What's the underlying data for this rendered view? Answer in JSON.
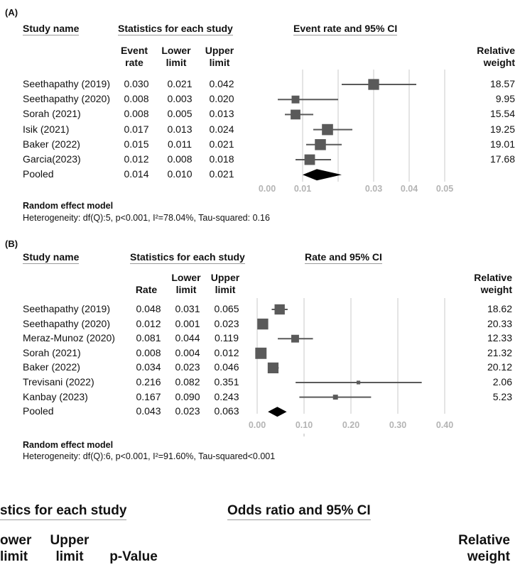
{
  "chart_data": [
    {
      "type": "forest",
      "panel_label": "(A)",
      "col_study": "Study name",
      "stats_header": "Statistics for each study",
      "plot_header": "Event rate and 95% CI",
      "col_est": [
        "Event",
        "rate"
      ],
      "col_lower": [
        "Lower",
        "limit"
      ],
      "col_upper": [
        "Upper",
        "limit"
      ],
      "col_weight": [
        "Relative",
        "weight"
      ],
      "xlim": [
        0,
        0.05
      ],
      "ticks": [
        "0.00",
        "0.01",
        "0.03",
        "0.04",
        "0.05"
      ],
      "tick_values": [
        0,
        0.01,
        0.03,
        0.04,
        0.05
      ],
      "grid_values": [
        0.01,
        0.02,
        0.03,
        0.04,
        0.05
      ],
      "rows": [
        {
          "study": "Seethapathy (2019)",
          "est": "0.030",
          "lower": "0.021",
          "upper": "0.042",
          "weight": "18.57",
          "x": 0.03,
          "lo": 0.021,
          "hi": 0.042
        },
        {
          "study": "Seethapathy (2020)",
          "est": "0.008",
          "lower": "0.003",
          "upper": "0.020",
          "weight": "9.95",
          "x": 0.008,
          "lo": 0.003,
          "hi": 0.02
        },
        {
          "study": "Sorah (2021)",
          "est": "0.008",
          "lower": "0.005",
          "upper": "0.013",
          "weight": "15.54",
          "x": 0.008,
          "lo": 0.005,
          "hi": 0.013
        },
        {
          "study": "Isik (2021)",
          "est": "0.017",
          "lower": "0.013",
          "upper": "0.024",
          "weight": "19.25",
          "x": 0.017,
          "lo": 0.013,
          "hi": 0.024
        },
        {
          "study": "Baker (2022)",
          "est": "0.015",
          "lower": "0.011",
          "upper": "0.021",
          "weight": "19.01",
          "x": 0.015,
          "lo": 0.011,
          "hi": 0.021
        },
        {
          "study": "Garcia(2023)",
          "est": "0.012",
          "lower": "0.008",
          "upper": "0.018",
          "weight": "17.68",
          "x": 0.012,
          "lo": 0.008,
          "hi": 0.018
        }
      ],
      "pooled": {
        "study": "Pooled",
        "est": "0.014",
        "lower": "0.010",
        "upper": "0.021",
        "x": 0.014,
        "lo": 0.01,
        "hi": 0.021
      },
      "model": "Random effect model",
      "heterogeneity": "Heterogeneity: df(Q):5, p<0.001, I²=78.04%, Tau-squared: 0.16"
    },
    {
      "type": "forest",
      "panel_label": "(B)",
      "col_study": "Study name",
      "stats_header": "Statistics for each study",
      "plot_header": "Rate and 95% CI",
      "col_est": [
        "Rate"
      ],
      "col_lower": [
        "Lower",
        "limit"
      ],
      "col_upper": [
        "Upper",
        "limit"
      ],
      "col_weight": [
        "Relative",
        "weight"
      ],
      "xlim": [
        0,
        0.4
      ],
      "ticks": [
        "0.00",
        "0.10",
        "0.20",
        "0.30",
        "0.40"
      ],
      "tick_values": [
        0,
        0.1,
        0.2,
        0.3,
        0.4
      ],
      "grid_values": [
        0,
        0.1,
        0.2,
        0.3,
        0.4
      ],
      "rows": [
        {
          "study": "Seethapathy (2019)",
          "est": "0.048",
          "lower": "0.031",
          "upper": "0.065",
          "weight": "18.62",
          "x": 0.048,
          "lo": 0.031,
          "hi": 0.065
        },
        {
          "study": "Seethapathy (2020)",
          "est": "0.012",
          "lower": "0.001",
          "upper": "0.023",
          "weight": "20.33",
          "x": 0.012,
          "lo": 0.001,
          "hi": 0.023
        },
        {
          "study": "Meraz-Munoz (2020)",
          "est": "0.081",
          "lower": "0.044",
          "upper": "0.119",
          "weight": "12.33",
          "x": 0.081,
          "lo": 0.044,
          "hi": 0.119
        },
        {
          "study": "Sorah (2021)",
          "est": "0.008",
          "lower": "0.004",
          "upper": "0.012",
          "weight": "21.32",
          "x": 0.008,
          "lo": 0.004,
          "hi": 0.012
        },
        {
          "study": "Baker (2022)",
          "est": "0.034",
          "lower": "0.023",
          "upper": "0.046",
          "weight": "20.12",
          "x": 0.034,
          "lo": 0.023,
          "hi": 0.046
        },
        {
          "study": "Trevisani (2022)",
          "est": "0.216",
          "lower": "0.082",
          "upper": "0.351",
          "weight": "2.06",
          "x": 0.216,
          "lo": 0.082,
          "hi": 0.351
        },
        {
          "study": "Kanbay (2023)",
          "est": "0.167",
          "lower": "0.090",
          "upper": "0.243",
          "weight": "5.23",
          "x": 0.167,
          "lo": 0.09,
          "hi": 0.243
        }
      ],
      "pooled": {
        "study": "Pooled",
        "est": "0.043",
        "lower": "0.023",
        "upper": "0.063",
        "x": 0.043,
        "lo": 0.023,
        "hi": 0.063
      },
      "model": "Random effect model",
      "heterogeneity": "Heterogeneity: df(Q):6, p<0.001, I²=91.60%, Tau-squared<0.001"
    }
  ],
  "panel_c_partial": {
    "stats_header": "stics for each study",
    "plot_header": "Odds ratio and 95% CI",
    "col_lower": [
      "ower",
      "limit"
    ],
    "col_upper": [
      "Upper",
      "limit"
    ],
    "col_p": "p-Value",
    "col_weight": [
      "Relative",
      "weight"
    ]
  },
  "colors": {
    "marker": "#5a5a5a",
    "grid": "#c8c8c8",
    "axis": "#b4b4b4",
    "diamond": "#000000"
  }
}
